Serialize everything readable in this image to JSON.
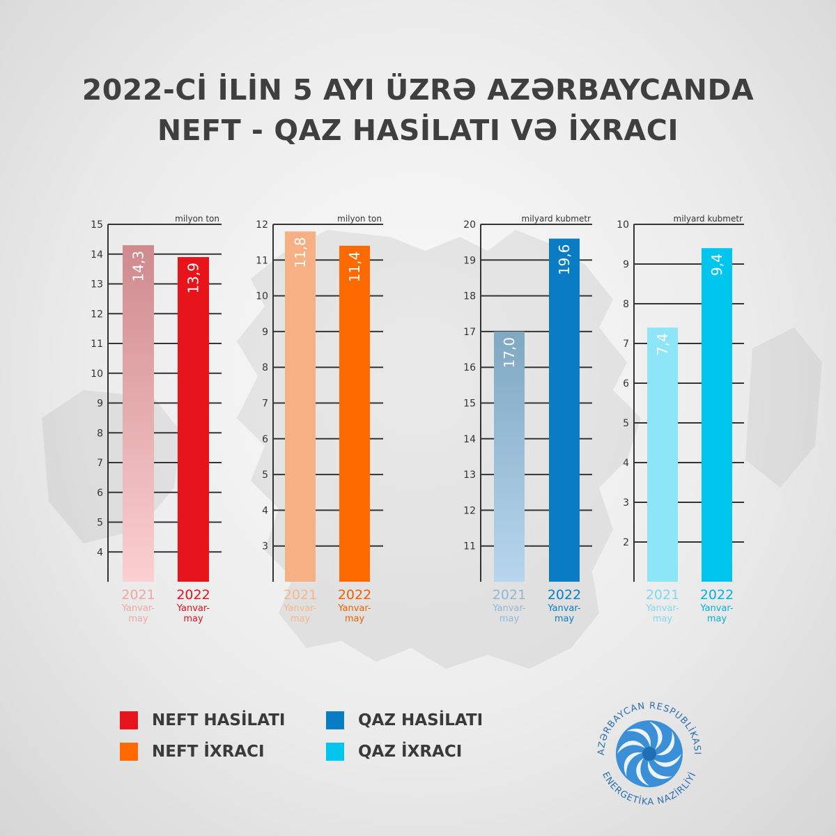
{
  "title": {
    "line1": "2022-Cİ İLİN 5 AYI ÜZRƏ AZƏRBAYCANDA",
    "line2": "NEFT - QAZ HASİLATI VƏ İXRACI"
  },
  "chart_data": [
    {
      "type": "bar",
      "unit": "milyon ton",
      "ylim": [
        3,
        15
      ],
      "yticks": [
        "4",
        "5",
        "6",
        "7",
        "8",
        "9",
        "10",
        "11",
        "12",
        "13",
        "14",
        "15"
      ],
      "categories": [
        {
          "year": "2021",
          "period": "Yanvar-\nmay"
        },
        {
          "year": "2022",
          "period": "Yanvar-\nmay"
        }
      ],
      "values": [
        14.3,
        13.9
      ],
      "value_labels": [
        "14,3",
        "13,9"
      ],
      "colors": [
        "#cf8a8e",
        "#e8141b"
      ],
      "colors_light": [
        "#fcd0d0",
        "#e8141b"
      ],
      "year_colors": [
        "#f0a5a5",
        "#e0141b"
      ]
    },
    {
      "type": "bar",
      "unit": "milyon ton",
      "ylim": [
        2,
        12
      ],
      "yticks": [
        "3",
        "4",
        "5",
        "6",
        "7",
        "8",
        "9",
        "10",
        "11",
        "12"
      ],
      "categories": [
        {
          "year": "2021",
          "period": "Yanvar-\nmay"
        },
        {
          "year": "2022",
          "period": "Yanvar-\nmay"
        }
      ],
      "values": [
        11.8,
        11.4
      ],
      "value_labels": [
        "11,8",
        "11,4"
      ],
      "colors": [
        "#f7b083",
        "#ff6a00"
      ],
      "colors_light": [
        "#f7b083",
        "#ff6a00"
      ],
      "year_colors": [
        "#f5b68a",
        "#f06000"
      ]
    },
    {
      "type": "bar",
      "unit": "milyard kubmetr",
      "ylim": [
        10,
        20
      ],
      "yticks": [
        "11",
        "12",
        "13",
        "14",
        "15",
        "16",
        "17",
        "18",
        "19",
        "20"
      ],
      "categories": [
        {
          "year": "2021",
          "period": "Yanvar-\nmay"
        },
        {
          "year": "2022",
          "period": "Yanvar-\nmay"
        }
      ],
      "values": [
        17.0,
        19.6
      ],
      "value_labels": [
        "17,0",
        "19,6"
      ],
      "colors": [
        "#7fa8c2",
        "#0a7cc4"
      ],
      "colors_light": [
        "#b7d6ee",
        "#0a7cc4"
      ],
      "year_colors": [
        "#8fb8d6",
        "#0a7cc4"
      ]
    },
    {
      "type": "bar",
      "unit": "milyard kubmetr",
      "ylim": [
        1,
        10
      ],
      "yticks": [
        "2",
        "3",
        "4",
        "5",
        "6",
        "7",
        "8",
        "9",
        "10"
      ],
      "categories": [
        {
          "year": "2021",
          "period": "Yanvar-\nmay"
        },
        {
          "year": "2022",
          "period": "Yanvar-\nmay"
        }
      ],
      "values": [
        7.4,
        9.4
      ],
      "value_labels": [
        "7,4",
        "9,4"
      ],
      "colors": [
        "#8de6f7",
        "#00c6ef"
      ],
      "colors_light": [
        "#8de6f7",
        "#00c6ef"
      ],
      "year_colors": [
        "#7fd8ee",
        "#00b2e0"
      ]
    }
  ],
  "legend": [
    {
      "label": "NEFT HASİLATI",
      "color": "#e8141b"
    },
    {
      "label": "NEFT İXRACI",
      "color": "#ff6a00"
    },
    {
      "label": "QAZ HASİLATI",
      "color": "#0a7cc4"
    },
    {
      "label": "QAZ İXRACI",
      "color": "#00c6ef"
    }
  ],
  "logo": {
    "top_text": "AZƏRBAYCAN RESPUBLİKASI",
    "bottom_text": "ENERGETİKA NAZİRLİYİ",
    "icon": "energy-ministry-emblem-icon",
    "color": "#2a6fb0"
  }
}
